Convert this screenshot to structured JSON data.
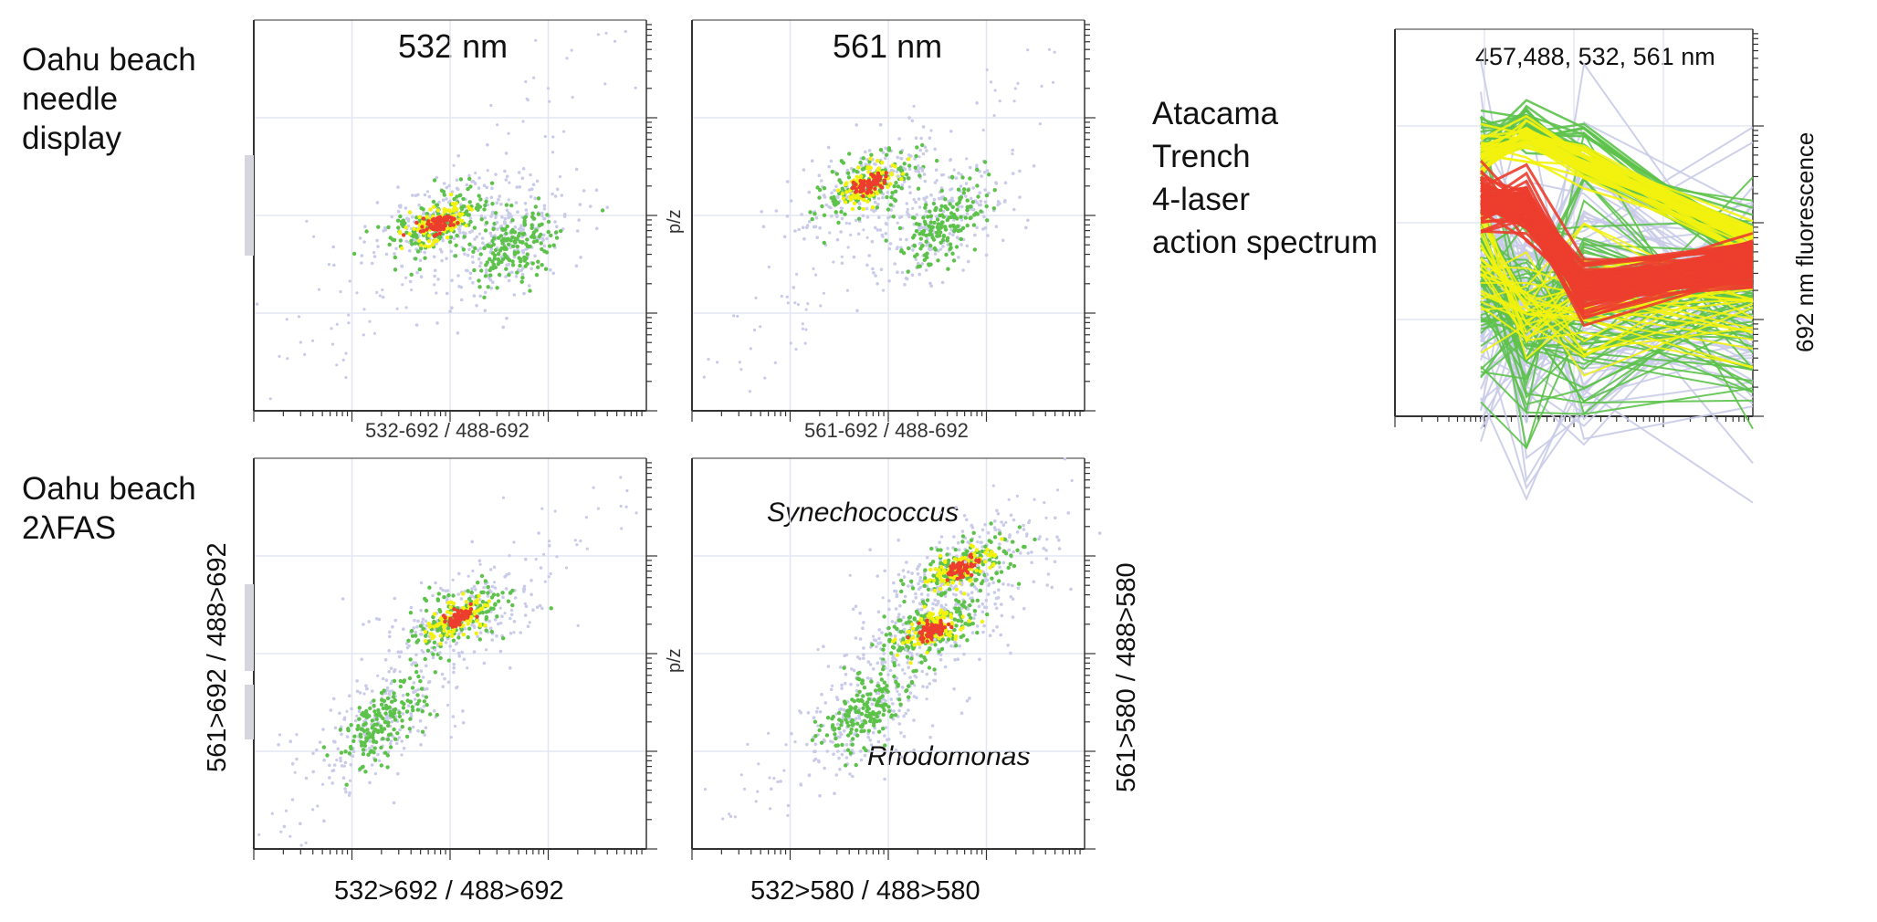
{
  "labels": {
    "row1_caption": [
      "Oahu beach",
      "needle",
      "display"
    ],
    "row2_caption": [
      "Oahu beach",
      "2λFAS"
    ],
    "right_caption": [
      "Atacama",
      "Trench",
      "4-laser",
      "action spectrum"
    ]
  },
  "chart_data": [
    {
      "type": "scatter",
      "title": "532 nm",
      "xlabel": "532-692 / 488-692",
      "ylabel": "",
      "right_label": "p/z",
      "x_scale": "log",
      "y_scale": "log",
      "grid": true,
      "populations": [
        {
          "density": "high",
          "cx": 0.47,
          "cy": 0.52
        },
        {
          "density": "medium",
          "cx": 0.66,
          "cy": 0.58
        }
      ]
    },
    {
      "type": "scatter",
      "title": "561 nm",
      "xlabel": "561-692 / 488-692",
      "ylabel": "",
      "x_scale": "log",
      "y_scale": "log",
      "grid": true,
      "populations": [
        {
          "density": "high",
          "cx": 0.45,
          "cy": 0.42
        },
        {
          "density": "medium",
          "cx": 0.64,
          "cy": 0.52
        }
      ]
    },
    {
      "type": "scatter",
      "title": "",
      "xlabel": "532>692 / 488>692",
      "ylabel": "561>692 / 488>692",
      "right_label": "p/z",
      "x_scale": "log",
      "y_scale": "log",
      "grid": true,
      "populations": [
        {
          "density": "high",
          "cx": 0.52,
          "cy": 0.41
        },
        {
          "density": "medium",
          "cx": 0.32,
          "cy": 0.68
        }
      ]
    },
    {
      "type": "scatter",
      "title": "",
      "xlabel": "532>580 / 488>580",
      "ylabel": "561>580 / 488>580",
      "annotations": [
        "Synechococcus",
        "Rhodomonas"
      ],
      "x_scale": "log",
      "y_scale": "log",
      "grid": true,
      "populations": [
        {
          "density": "high",
          "cx": 0.69,
          "cy": 0.28
        },
        {
          "density": "high",
          "cx": 0.61,
          "cy": 0.44
        },
        {
          "density": "medium",
          "cx": 0.44,
          "cy": 0.65
        }
      ]
    },
    {
      "type": "line",
      "title": "457,488, 532, 561 nm",
      "xlabel": "",
      "ylabel": "692 nm fluorescence",
      "x": [
        "457",
        "488",
        "532",
        "561"
      ],
      "y_scale": "log",
      "grid": true
    }
  ],
  "colors": {
    "low": "#c9cbe8",
    "mid": "#5cc24a",
    "mid2": "#f2f20e",
    "high": "#ec3d2e",
    "axis": "#333333",
    "grid": "#e3e5f3",
    "side_hist": "#d6d6df"
  }
}
